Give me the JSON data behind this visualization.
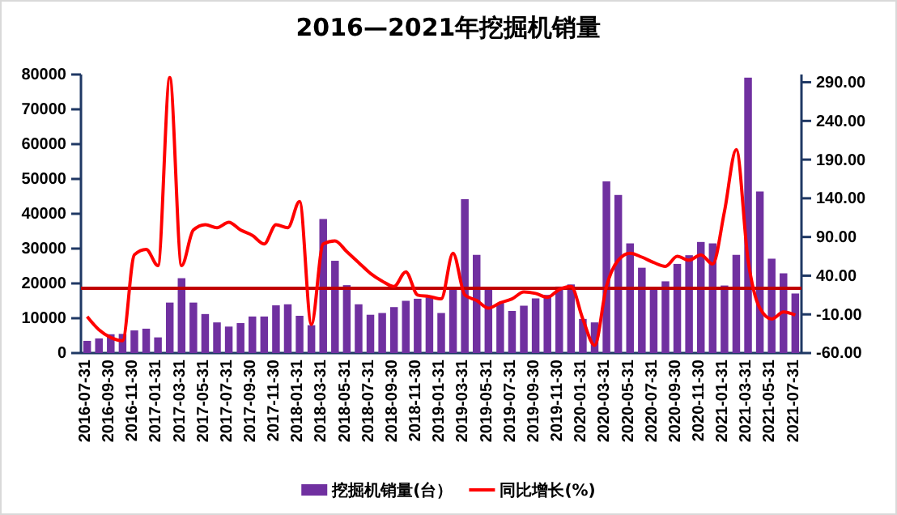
{
  "chart_data": {
    "type": "bar",
    "title": "2016—2021年挖掘机销量",
    "categories": [
      "2016-07-31",
      null,
      "2016-09-30",
      null,
      "2016-11-30",
      null,
      "2017-01-31",
      null,
      "2017-03-31",
      null,
      "2017-05-31",
      null,
      "2017-07-31",
      null,
      "2017-09-30",
      null,
      "2017-11-30",
      null,
      "2018-01-31",
      null,
      "2018-03-31",
      null,
      "2018-05-31",
      null,
      "2018-07-31",
      null,
      "2018-09-30",
      null,
      "2018-11-30",
      null,
      "2019-01-31",
      null,
      "2019-03-31",
      null,
      "2019-05-31",
      null,
      "2019-07-31",
      null,
      "2019-09-30",
      null,
      "2019-11-30",
      null,
      "2020-01-31",
      null,
      "2020-03-31",
      null,
      "2020-05-31",
      null,
      "2020-07-31",
      null,
      "2020-09-30",
      null,
      "2020-11-30",
      null,
      "2021-01-31",
      null,
      "2021-03-31",
      null,
      "2021-05-31",
      null,
      "2021-07-31"
    ],
    "series": [
      {
        "name": "挖掘机销量(台）",
        "color": "#7030a0",
        "values": [
          3500,
          4200,
          5400,
          5500,
          6500,
          7000,
          4500,
          14500,
          21500,
          14500,
          11200,
          8800,
          7600,
          8600,
          10500,
          10500,
          13700,
          14000,
          10700,
          8000,
          38500,
          26500,
          19500,
          14000,
          11000,
          11500,
          13200,
          15000,
          15600,
          16000,
          11500,
          18500,
          44200,
          28200,
          18300,
          14400,
          12100,
          13600,
          15700,
          16700,
          19100,
          19700,
          9800,
          8800,
          49300,
          45400,
          31500,
          24500,
          18600,
          20600,
          25600,
          28100,
          31900,
          31500,
          19400,
          28200,
          79100,
          46400,
          27100,
          22900,
          17100
        ]
      },
      {
        "name": "同比增长(%)",
        "type": "line",
        "axis": "y2",
        "color": "#ff0000",
        "values": [
          -13,
          -30,
          -40,
          -44,
          67,
          74,
          53,
          296,
          53,
          99,
          106,
          102,
          109,
          99,
          92,
          81,
          106,
          102,
          136,
          -23,
          81,
          85,
          71,
          57,
          43,
          33,
          26,
          45,
          15,
          13,
          10,
          69,
          15,
          8,
          -2,
          5,
          10,
          19,
          17,
          12,
          22,
          26,
          -16,
          -50,
          26,
          60,
          69,
          64,
          57,
          52,
          65,
          60,
          67,
          55,
          123,
          203,
          60,
          -2,
          -16,
          -7,
          -11
        ]
      }
    ],
    "ylim": [
      0,
      80000
    ],
    "yticks": [
      0,
      10000,
      20000,
      30000,
      40000,
      50000,
      60000,
      70000,
      80000
    ],
    "y2lim": [
      -60,
      300
    ],
    "y2ticks": [
      {
        "value": -60,
        "label": "-60.00"
      },
      {
        "value": -10,
        "label": "-10.00"
      },
      {
        "value": 40,
        "label": "40.00"
      },
      {
        "value": 90,
        "label": "90.00"
      },
      {
        "value": 140,
        "label": "140.00"
      },
      {
        "value": 190,
        "label": "190.00"
      },
      {
        "value": 240,
        "label": "240.00"
      },
      {
        "value": 290,
        "label": "290.00"
      }
    ],
    "ref_lines": [
      {
        "axis": "y",
        "value": 18600,
        "color": "#c00000"
      }
    ],
    "grid": false,
    "legend": "bottom",
    "marker": "none"
  }
}
